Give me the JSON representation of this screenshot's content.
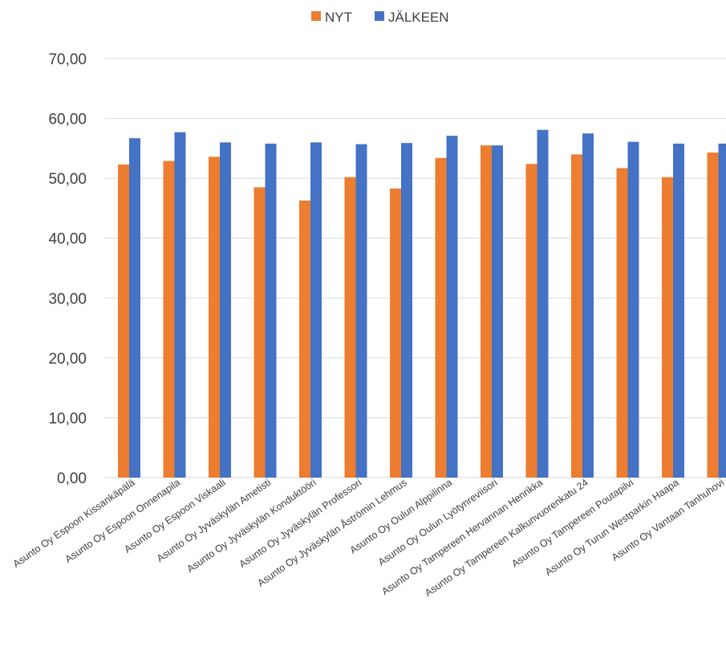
{
  "chart_data": {
    "type": "bar",
    "title": "",
    "xlabel": "",
    "ylabel": "",
    "ylim": [
      0,
      70
    ],
    "yticks": [
      "0,00",
      "10,00",
      "20,00",
      "30,00",
      "40,00",
      "50,00",
      "60,00",
      "70,00"
    ],
    "grid": true,
    "legend_position": "top",
    "categories": [
      "Asunto Oy Espoon Kissankäpälä",
      "Asunto Oy Espoon Onnenapila",
      "Asunto Oy Espoon Viskaali",
      "Asunto Oy Jyväskylän Ametisti",
      "Asunto Oy Jyväskylän Konduktööri",
      "Asunto Oy Jyväskylän Professori",
      "Asunto Oy Jyväskylän Åströmin Lehmus",
      "Asunto Oy Oulun Alppilinna",
      "Asunto Oy Oulun Lyötynreviisori",
      "Asunto Oy Tampereen Hervannan Henrikka",
      "Asunto Oy Tampereen Kalkunvuorenkatu 24",
      "Asunto Oy Tampereen Poutapilvi",
      "Asunto Oy Turun Westparkin Haapa",
      "Asunto Oy Vantaan Tanhuhovi"
    ],
    "series": [
      {
        "name": "NYT",
        "color": "#ed7d31",
        "values": [
          52.3,
          52.9,
          53.6,
          48.5,
          46.3,
          50.2,
          48.3,
          53.4,
          55.5,
          52.4,
          54.0,
          51.7,
          50.2,
          54.3
        ]
      },
      {
        "name": "JÄLKEEN",
        "color": "#4472c4",
        "values": [
          56.7,
          57.7,
          56.0,
          55.8,
          56.0,
          55.7,
          55.9,
          57.1,
          55.5,
          58.1,
          57.5,
          56.1,
          55.8,
          55.8
        ]
      }
    ]
  }
}
